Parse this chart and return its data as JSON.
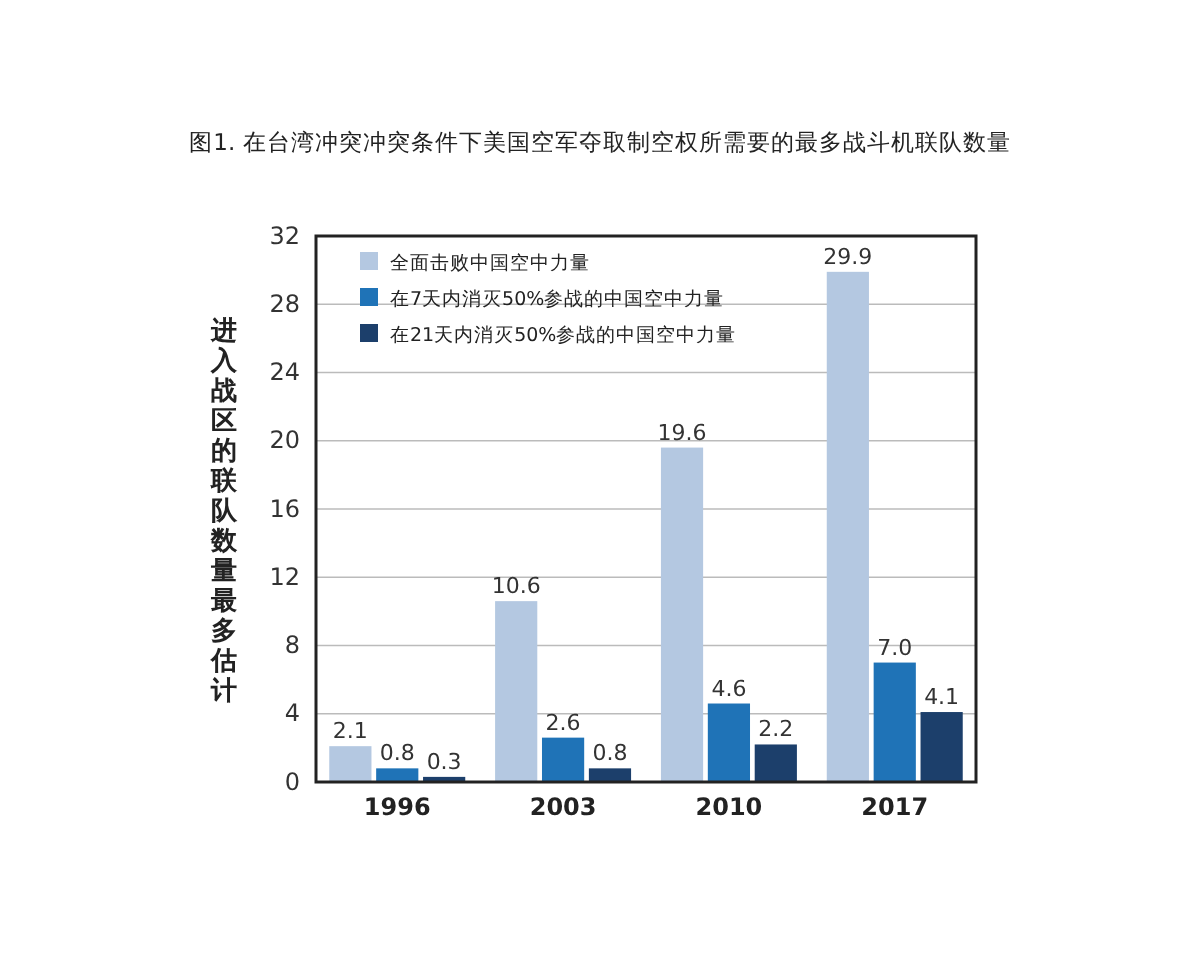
{
  "chart_data": {
    "type": "bar",
    "title": "图1. 在台湾冲突冲突条件下美国空军夺取制空权所需要的最多战斗机联队数量",
    "ylabel": "进入战区的联队数量最多估计",
    "categories": [
      "1996",
      "2003",
      "2010",
      "2017"
    ],
    "series": [
      {
        "name": "全面击败中国空中力量",
        "color": "#b4c8e1",
        "values": [
          2.1,
          10.6,
          19.6,
          29.9
        ],
        "value_labels": [
          "2.1",
          "10.6",
          "19.6",
          "29.9"
        ]
      },
      {
        "name": "在7天内消灭50%参战的中国空中力量",
        "color": "#1f73b7",
        "values": [
          0.8,
          2.6,
          4.6,
          7.0
        ],
        "value_labels": [
          "0.8",
          "2.6",
          "4.6",
          "7.0"
        ]
      },
      {
        "name": "在21天内消灭50%参战的中国空中力量",
        "color": "#1c3f6b",
        "values": [
          0.3,
          0.8,
          2.2,
          4.1
        ],
        "value_labels": [
          "0.3",
          "0.8",
          "2.2",
          "4.1"
        ]
      }
    ],
    "ylim": [
      0,
      32
    ],
    "yticks": [
      0,
      4,
      8,
      12,
      16,
      20,
      24,
      28,
      32
    ],
    "grid": "y",
    "legend": "top left"
  }
}
